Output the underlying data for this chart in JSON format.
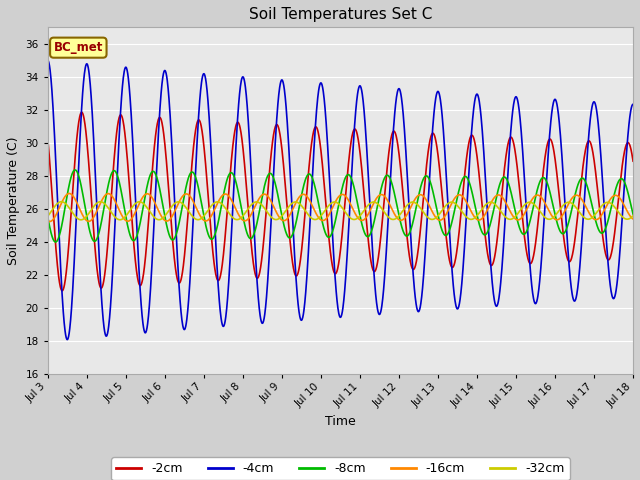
{
  "title": "Soil Temperatures Set C",
  "xlabel": "Time",
  "ylabel": "Soil Temperature (C)",
  "ylim": [
    16,
    37
  ],
  "yticks": [
    16,
    18,
    20,
    22,
    24,
    26,
    28,
    30,
    32,
    34,
    36
  ],
  "fig_bg": "#d0d0d0",
  "plot_bg": "#e8e8e8",
  "series": [
    {
      "label": "-2cm",
      "color": "#cc0000",
      "amplitude": 5.5,
      "mean": 26.5,
      "period": 1.0,
      "phase_shift": 0.62,
      "amp_decay": 0.03
    },
    {
      "label": "-4cm",
      "color": "#0000cc",
      "amplitude": 8.5,
      "mean": 26.5,
      "period": 1.0,
      "phase_shift": 0.75,
      "amp_decay": 0.025
    },
    {
      "label": "-8cm",
      "color": "#00bb00",
      "amplitude": 2.2,
      "mean": 26.2,
      "period": 1.0,
      "phase_shift": 0.45,
      "amp_decay": 0.02
    },
    {
      "label": "-16cm",
      "color": "#ff8800",
      "amplitude": 0.85,
      "mean": 26.1,
      "period": 1.0,
      "phase_shift": 0.3,
      "amp_decay": 0.01
    },
    {
      "label": "-32cm",
      "color": "#cccc00",
      "amplitude": 0.55,
      "mean": 25.9,
      "period": 1.0,
      "phase_shift": 0.1,
      "amp_decay": 0.005
    }
  ],
  "xtick_days": [
    3,
    4,
    5,
    6,
    7,
    8,
    9,
    10,
    11,
    12,
    13,
    14,
    15,
    16,
    17,
    18
  ],
  "xtick_labels": [
    "Jul 3",
    "Jul 4",
    "Jul 5",
    "Jul 6",
    "Jul 7",
    "Jul 8",
    "Jul 9",
    "Jul 10",
    "Jul 11",
    "Jul 12",
    "Jul 13",
    "Jul 14",
    "Jul 15",
    "Jul 16",
    "Jul 17",
    "Jul 18"
  ],
  "start_day": 3,
  "end_day": 18,
  "legend_label": "BC_met",
  "legend_fg": "#990000",
  "legend_bg": "#ffff99"
}
